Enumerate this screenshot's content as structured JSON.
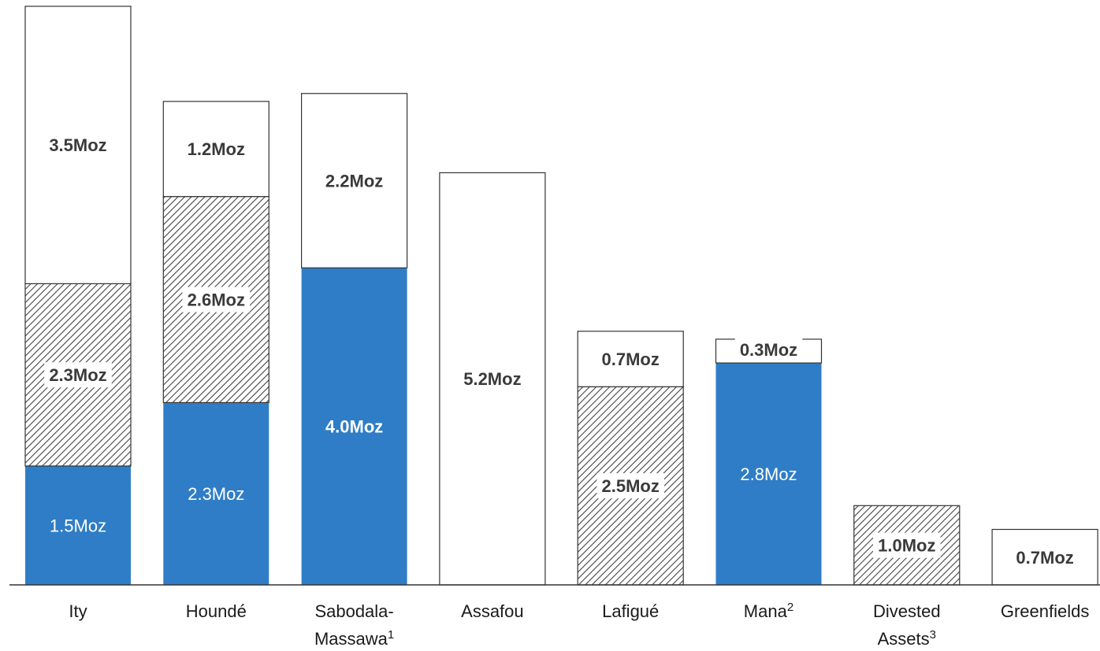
{
  "colors": {
    "blue": "#2f7dc6",
    "outline": "#333333",
    "hatch_line": "#444444",
    "white_fill": "#ffffff",
    "dark_text": "#3a3a3a",
    "light_text": "#ffffff"
  },
  "chart_data": {
    "type": "bar",
    "stacked": true,
    "unit": "Moz",
    "grid": false,
    "legend": "none",
    "ylim": [
      0,
      7.5
    ],
    "categories": [
      {
        "label": "Ity",
        "sup": ""
      },
      {
        "label": "Houndé",
        "sup": ""
      },
      {
        "label": "Sabodala-",
        "label2": "Massawa",
        "sup": "1"
      },
      {
        "label": "Assafou",
        "sup": ""
      },
      {
        "label": "Lafigué",
        "sup": ""
      },
      {
        "label": "Mana",
        "sup": "2"
      },
      {
        "label": "Divested",
        "label2": "Assets",
        "sup": "3"
      },
      {
        "label": "Greenfields",
        "sup": ""
      }
    ],
    "bars": [
      {
        "segments": [
          {
            "style": "blue",
            "value": 1.5,
            "label": "1.5Moz",
            "bold": false
          },
          {
            "style": "hatch",
            "value": 2.3,
            "label": "2.3Moz",
            "bold": true
          },
          {
            "style": "white",
            "value": 3.5,
            "label": "3.5Moz",
            "bold": true
          }
        ]
      },
      {
        "segments": [
          {
            "style": "blue",
            "value": 2.3,
            "label": "2.3Moz",
            "bold": false
          },
          {
            "style": "hatch",
            "value": 2.6,
            "label": "2.6Moz",
            "bold": true
          },
          {
            "style": "white",
            "value": 1.2,
            "label": "1.2Moz",
            "bold": true
          }
        ]
      },
      {
        "segments": [
          {
            "style": "blue",
            "value": 4.0,
            "label": "4.0Moz",
            "bold": true
          },
          {
            "style": "white",
            "value": 2.2,
            "label": "2.2Moz",
            "bold": true
          }
        ]
      },
      {
        "segments": [
          {
            "style": "white",
            "value": 5.2,
            "label": "5.2Moz",
            "bold": true
          }
        ]
      },
      {
        "segments": [
          {
            "style": "hatch",
            "value": 2.5,
            "label": "2.5Moz",
            "bold": true
          },
          {
            "style": "white",
            "value": 0.7,
            "label": "0.7Moz",
            "bold": true
          }
        ]
      },
      {
        "segments": [
          {
            "style": "blue",
            "value": 2.8,
            "label": "2.8Moz",
            "bold": false
          },
          {
            "style": "white",
            "value": 0.3,
            "label": "0.3Moz",
            "bold": true
          }
        ]
      },
      {
        "segments": [
          {
            "style": "hatch",
            "value": 1.0,
            "label": "1.0Moz",
            "bold": true
          }
        ]
      },
      {
        "segments": [
          {
            "style": "white",
            "value": 0.7,
            "label": "0.7Moz",
            "bold": true
          }
        ]
      }
    ]
  }
}
